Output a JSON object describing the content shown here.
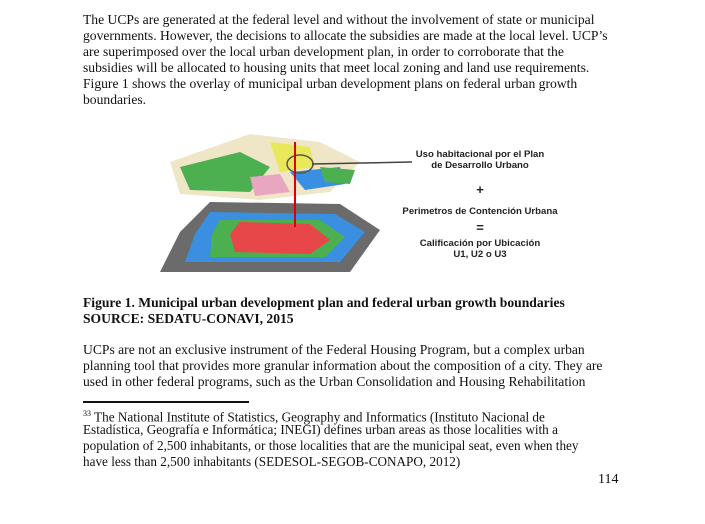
{
  "paragraph1": [
    "The UCPs are generated at the federal level and without the involvement of state or municipal",
    "governments. However, the decisions to allocate the subsidies are made at the local level. UCP’s",
    "are superimposed over the local urban development plan, in order to corroborate that the",
    "subsidies will be allocated to housing units that meet local zoning and land use requirements.",
    "Figure 1 shows the overlay of municipal urban development plans on federal urban growth",
    "boundaries."
  ],
  "figure": {
    "label1_line1": "Uso habitacional por el Plan",
    "label1_line2": "de Desarrollo Urbano",
    "plus": "+",
    "label2": "Perimetros de Contención Urbana",
    "equals": "=",
    "label3_line1": "Calificación por Ubicación",
    "label3_line2": "U1, U2 o  U3",
    "colors": {
      "green": "#4caf50",
      "red": "#e8474a",
      "blue": "#3a8fe0",
      "yellow": "#e8e85a",
      "gray": "#6b6b6b"
    }
  },
  "caption": {
    "title": "Figure 1. Municipal urban development plan and federal urban growth boundaries",
    "source": "SOURCE: SEDATU-CONAVI, 2015"
  },
  "paragraph2": [
    "UCPs are not an exclusive instrument of the Federal Housing Program, but a complex urban",
    "planning tool that provides more granular information about the composition of a city. They are",
    "used in other federal programs, such as the Urban Consolidation and Housing Rehabilitation"
  ],
  "footnote": {
    "number": "33",
    "lines": [
      " The National Institute of Statistics, Geography and Informatics (Instituto Nacional de",
      "Estadística, Geografía e Informática; INEGI) defines urban areas as those localities with a",
      "population of 2,500 inhabitants, or those localities that are the municipal seat, even when they",
      "have less than 2,500 inhabitants (SEDESOL-SEGOB-CONAPO, 2012)"
    ]
  },
  "page_number": "114"
}
